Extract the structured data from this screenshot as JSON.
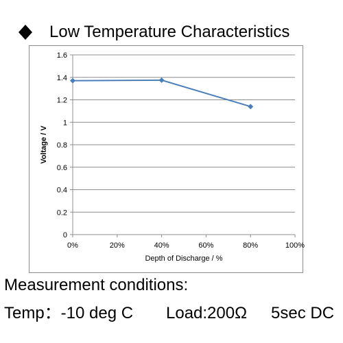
{
  "header": {
    "title": "Low Temperature Characteristics",
    "bullet_icon": "diamond-bullet-icon"
  },
  "chart_data": {
    "type": "line",
    "title": "",
    "xlabel": "Depth of Discharge / %",
    "ylabel": "Voltage  /  V",
    "x_ticks": [
      "0%",
      "20%",
      "40%",
      "60%",
      "80%",
      "100%"
    ],
    "y_ticks": [
      "0",
      "0.2",
      "0.4",
      "0.6",
      "0.8",
      "1",
      "1.2",
      "1.4",
      "1.6"
    ],
    "xlim": [
      0,
      100
    ],
    "ylim": [
      0,
      1.6
    ],
    "grid": "horizontal",
    "series": [
      {
        "x": [
          0,
          40,
          80
        ],
        "y": [
          1.37,
          1.375,
          1.14
        ],
        "color": "#4a7ebb"
      }
    ]
  },
  "footer": {
    "line1": "Measurement conditions:",
    "temp": "Temp：-10 deg C",
    "load": "Load:200Ω",
    "duration": "5sec DC"
  }
}
